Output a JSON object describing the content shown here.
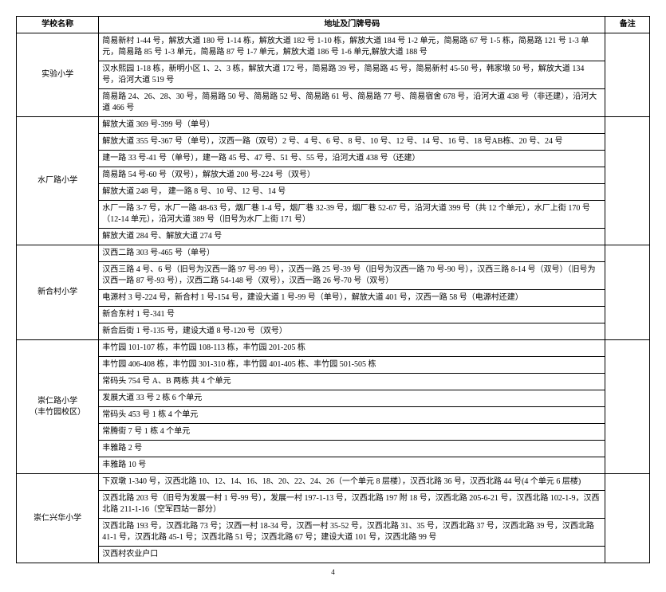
{
  "headers": {
    "school": "学校名称",
    "address": "地址及门牌号码",
    "note": "备注"
  },
  "page_number": "4",
  "schools": [
    {
      "name": "实验小学",
      "rows": [
        "简易新村 1-44 号，解放大道 180 号 1-14 栋，解放大道 182 号 1-10 栋，解放大道 184 号 1-2 单元，简易路 67 号 1-5 栋，简易路 121 号 1-3 单元，简易路 85 号 1-3 单元，简易路 87 号 1-7 单元，解放大道 186 号 1-6 单元,解放大道 188 号",
        "汉水熙园 1-18 栋，新明小区 1、2、3 栋，解放大道 172 号，简易路 39 号，简易路 45 号，简易新村 45-50 号，韩家墩 50 号，解放大道 134 号，沿河大道 519 号",
        "简易路 24、26、28、30 号，简易路 50 号、简易路 52 号、简易路 61 号、简易路 77 号、简易宿舍 678 号，沿河大道 438 号（非还建），沿河大道 466 号"
      ]
    },
    {
      "name": "水厂路小学",
      "rows": [
        "解放大道 369 号-399 号（单号）",
        "解放大道 355 号-367 号（单号），汉西一路（双号）2 号、4 号、6 号、8 号、10 号、12 号、14 号、16 号、18 号AB栋、20 号、24 号",
        "建一路 33 号-41 号（单号），建一路 45 号、47 号、51 号、55 号，沿河大道 438 号（还建）",
        "简易路 54 号-60 号（双号），解放大道 200 号-224 号（双号）",
        "解放大道 248 号， 建一路 8 号、10 号、12 号、14 号",
        "水厂一路 3-7 号，水厂一路 48-63 号，烟厂巷 1-4 号，烟厂巷 32-39 号，烟厂巷 52-67 号，沿河大道 399 号（共 12 个单元），水厂上街 170 号（12-14 单元），沿河大道 389 号（旧号为水厂上街 171 号）",
        "解放大道 284 号、解放大道 274 号"
      ]
    },
    {
      "name": "新合村小学",
      "rows": [
        "汉西二路 303 号-465 号（单号）",
        "汉西三路 4 号、6 号（旧号为汉西一路 97 号-99 号），汉西一路 25 号-39 号（旧号为汉西一路 70 号-90 号），汉西三路 8-14 号（双号）（旧号为汉西一路 87 号-93 号），汉西二路 54-148 号（双号），汉西一路 26 号-70 号（双号）",
        "电源村 3 号-224 号，新合村 1 号-154 号，建设大道 1 号-99 号（单号），解放大道 401 号，汉西一路 58 号（电源村还建）",
        "新合东村 1 号-341 号",
        "新合后街 1 号-135 号，建设大道 8 号-120 号（双号）"
      ]
    },
    {
      "name": "崇仁路小学\n（丰竹园校区）",
      "rows": [
        "丰竹园 101-107 栋，丰竹园 108-113 栋，丰竹园 201-205 栋",
        "丰竹园 406-408 栋，丰竹园 301-310 栋，丰竹园 401-405 栋、丰竹园 501-505 栋",
        "常码头 754 号 A、B 两栋  共 4 个单元",
        "发展大道 33 号 2 栋 6 个单元",
        "常码头 453 号 1 栋 4 个单元",
        "常腾街 7 号 1 栋 4 个单元",
        "丰雅路 2 号",
        "丰雅路 10 号"
      ]
    },
    {
      "name": "崇仁兴华小学",
      "rows": [
        "下双墩 1-340 号，汉西北路 10、12、14、16、18、20、22、24、26（一个单元 8 层楼），汉西北路 36 号，汉西北路 44 号(4 个单元 6 层楼)",
        "汉西北路 203 号（旧号为发展一村 1 号-99 号），发展一村 197-1-13 号，汉西北路 197 附 18 号，汉西北路 205-6-21 号，汉西北路 102-1-9，汉西北路 211-1-16（空军四站一部分）",
        "汉西北路 193 号，汉西北路 73 号；汉西一村 18-34 号，汉西一村 35-52 号，汉西北路 31、35 号，汉西北路 37 号，汉西北路 39 号，汉西北路 41-1 号，汉西北路 45-1 号；汉西北路 51 号；汉西北路 67 号；建设大道 101 号，汉西北路 99 号",
        "汉西村农业户口"
      ]
    }
  ]
}
